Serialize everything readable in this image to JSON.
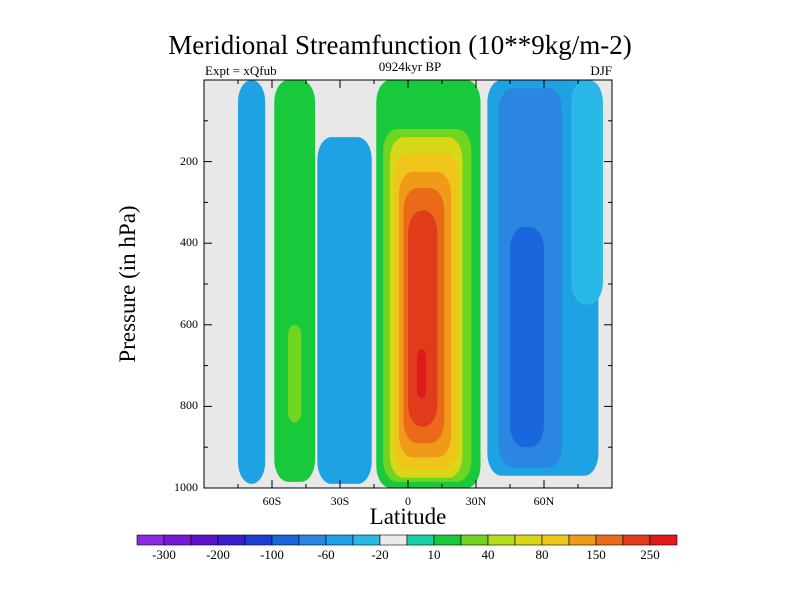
{
  "chart_data": {
    "type": "heatmap",
    "title": "Meridional Streamfunction (10**9kg/m-2)",
    "subtitle_left": "Expt = xQfub",
    "subtitle_center": "0924kyr BP",
    "subtitle_right": "DJF",
    "xlabel": "Latitude",
    "ylabel": "Pressure (in hPa)",
    "xlim": [
      -90,
      90
    ],
    "ylim": [
      1000,
      0
    ],
    "x_ticks": [
      {
        "value": -60,
        "label": "60S"
      },
      {
        "value": -30,
        "label": "30S"
      },
      {
        "value": 0,
        "label": "0"
      },
      {
        "value": 30,
        "label": "30N"
      },
      {
        "value": 60,
        "label": "60N"
      }
    ],
    "y_ticks": [
      {
        "value": 200,
        "label": "200"
      },
      {
        "value": 400,
        "label": "400"
      },
      {
        "value": 600,
        "label": "600"
      },
      {
        "value": 800,
        "label": "800"
      },
      {
        "value": 1000,
        "label": "1000"
      }
    ],
    "background_color": "#e8e8e8",
    "colorbar": {
      "colors": [
        "#8a2be2",
        "#7a18d8",
        "#5c12cc",
        "#3a1fcf",
        "#1c3fd4",
        "#1a66dc",
        "#2a86e0",
        "#1fa2e4",
        "#2ab8e6",
        "#eaeaea",
        "#19d1a6",
        "#19c93c",
        "#6fd520",
        "#b5dc1a",
        "#d8d818",
        "#efc51a",
        "#f09a1a",
        "#ea6a1a",
        "#e03b1a",
        "#e01a1a"
      ],
      "labels": [
        {
          "index": 1,
          "text": "-300"
        },
        {
          "index": 3,
          "text": "-200"
        },
        {
          "index": 5,
          "text": "-100"
        },
        {
          "index": 7,
          "text": "-60"
        },
        {
          "index": 9,
          "text": "-20"
        },
        {
          "index": 11,
          "text": "10"
        },
        {
          "index": 13,
          "text": "40"
        },
        {
          "index": 15,
          "text": "80"
        },
        {
          "index": 17,
          "text": "150"
        },
        {
          "index": 19,
          "text": "250"
        }
      ]
    },
    "cells": [
      {
        "level": -20,
        "color": "#1fa2e4",
        "lat": [
          -75,
          -63
        ],
        "p": [
          0,
          990
        ]
      },
      {
        "level": 10,
        "color": "#19c93c",
        "lat": [
          -59,
          -41
        ],
        "p": [
          0,
          985
        ]
      },
      {
        "level": 40,
        "color": "#6fd520",
        "lat": [
          -53,
          -47
        ],
        "p": [
          600,
          840
        ]
      },
      {
        "level": -20,
        "color": "#1fa2e4",
        "lat": [
          -40,
          -16
        ],
        "p": [
          140,
          990
        ]
      },
      {
        "level": 10,
        "color": "#19c93c",
        "lat": [
          -14,
          32
        ],
        "p": [
          0,
          1000
        ]
      },
      {
        "level": 40,
        "color": "#6fd520",
        "lat": [
          -11,
          28
        ],
        "p": [
          120,
          985
        ]
      },
      {
        "level": 80,
        "color": "#d8d818",
        "lat": [
          -8,
          24
        ],
        "p": [
          140,
          975
        ]
      },
      {
        "level": 100,
        "color": "#efc51a",
        "lat": [
          -6,
          22
        ],
        "p": [
          180,
          955
        ]
      },
      {
        "level": 150,
        "color": "#f09a1a",
        "lat": [
          -4,
          19
        ],
        "p": [
          225,
          925
        ]
      },
      {
        "level": 200,
        "color": "#ea6a1a",
        "lat": [
          -2,
          16
        ],
        "p": [
          265,
          890
        ]
      },
      {
        "level": 250,
        "color": "#e03b1a",
        "lat": [
          0,
          13
        ],
        "p": [
          320,
          850
        ]
      },
      {
        "level": 300,
        "color": "#e01a1a",
        "lat": [
          4,
          8
        ],
        "p": [
          660,
          780
        ]
      },
      {
        "level": -20,
        "color": "#1fa2e4",
        "lat": [
          35,
          84
        ],
        "p": [
          0,
          970
        ]
      },
      {
        "level": -60,
        "color": "#2a86e0",
        "lat": [
          40,
          68
        ],
        "p": [
          20,
          950
        ]
      },
      {
        "level": -100,
        "color": "#1a66dc",
        "lat": [
          45,
          60
        ],
        "p": [
          360,
          900
        ]
      },
      {
        "level": -20,
        "color": "#2ab8e6",
        "lat": [
          72,
          86
        ],
        "p": [
          0,
          550
        ]
      },
      {
        "level": 10,
        "color": "#19c93c",
        "lat": [
          0,
          3
        ],
        "p": [
          0,
          60
        ]
      }
    ]
  }
}
